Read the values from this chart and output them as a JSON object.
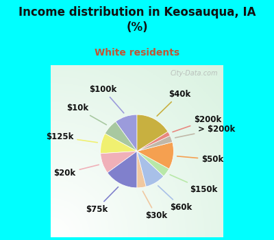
{
  "title": "Income distribution in Keosauqua, IA\n(%)",
  "subtitle": "White residents",
  "title_color": "#111111",
  "subtitle_color": "#c05533",
  "bg_top": "#00ffff",
  "bg_chart_color": "#d8efe8",
  "watermark": "City-Data.com",
  "labels": [
    "$100k",
    "$10k",
    "$125k",
    "$20k",
    "$75k",
    "$30k",
    "$60k",
    "$150k",
    "$50k",
    "> $200k",
    "$200k",
    "$40k"
  ],
  "values": [
    10,
    7,
    9,
    9,
    15,
    4,
    9,
    4,
    12,
    3,
    2,
    16
  ],
  "colors": [
    "#9b9bdb",
    "#a8c8a0",
    "#f0f070",
    "#f0b0b8",
    "#8080cc",
    "#f0c8a0",
    "#a8c0e8",
    "#b8e8a8",
    "#f5a050",
    "#c0b8a8",
    "#e88880",
    "#c8b040"
  ],
  "startangle": 90,
  "label_fontsize": 8.5
}
